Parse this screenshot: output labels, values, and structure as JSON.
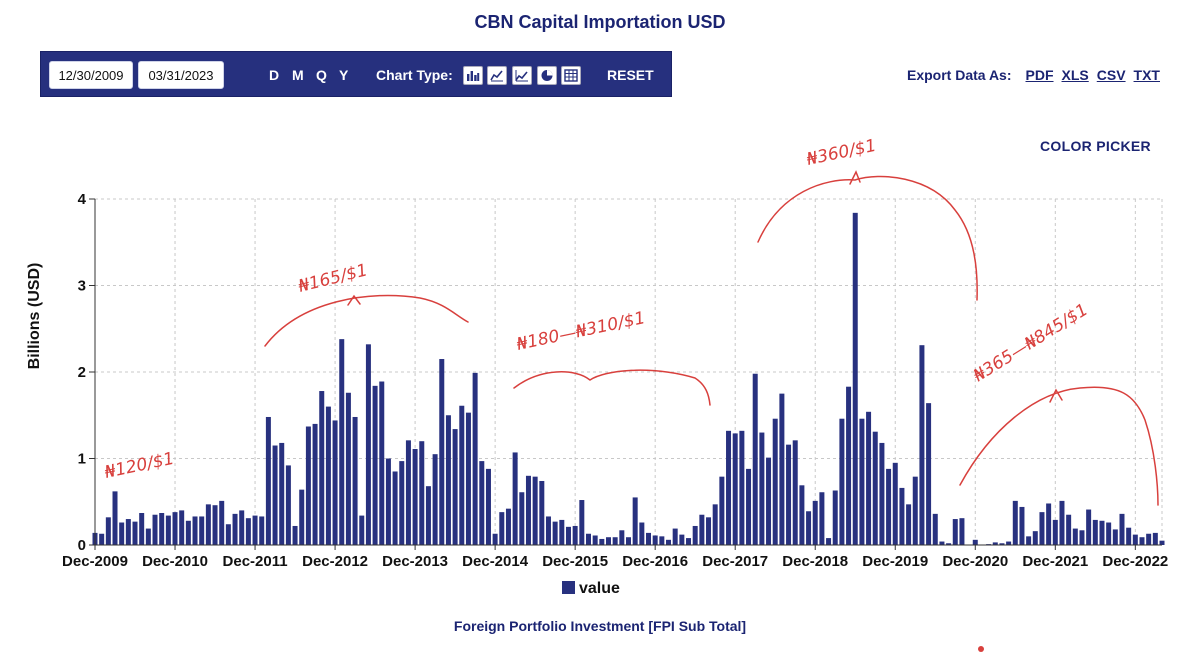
{
  "title": "CBN Capital Importation USD",
  "toolbar": {
    "start_date": "12/30/2009",
    "end_date": "03/31/2023",
    "frequencies": [
      "D",
      "M",
      "Q",
      "Y"
    ],
    "chart_type_label": "Chart Type:",
    "chart_type_icons": [
      "bar-chart-icon",
      "line-chart-icon",
      "area-chart-icon",
      "pie-chart-icon",
      "table-icon"
    ],
    "reset_label": "RESET"
  },
  "export": {
    "label": "Export Data As:",
    "formats": [
      "PDF",
      "XLS",
      "CSV",
      "TXT"
    ]
  },
  "color_picker_label": "COLOR PICKER",
  "annotations": {
    "a1": "₦120/$1",
    "a2": "₦165/$1",
    "a3": "₦180—₦310/$1",
    "a4": "₦360/$1",
    "a5": "₦365—₦845/$1"
  },
  "colors": {
    "bar": "#28317f",
    "accent": "#1b2472",
    "annotation": "#d8403d"
  },
  "chart_data": {
    "type": "bar",
    "title": "CBN Capital Importation USD",
    "subtitle": "Foreign Portfolio Investment [FPI Sub Total]",
    "xlabel": "",
    "ylabel": "Billions (USD)",
    "ylim": [
      0,
      4
    ],
    "yticks": [
      0,
      1,
      2,
      3,
      4
    ],
    "xticks": [
      "Dec-2009",
      "Dec-2010",
      "Dec-2011",
      "Dec-2012",
      "Dec-2013",
      "Dec-2014",
      "Dec-2015",
      "Dec-2016",
      "Dec-2017",
      "Dec-2018",
      "Dec-2019",
      "Dec-2020",
      "Dec-2021",
      "Dec-2022"
    ],
    "grid": true,
    "legend": "bottom-center",
    "series": [
      {
        "name": "value",
        "start": "Dec-2009",
        "frequency": "monthly",
        "values": [
          0.14,
          0.13,
          0.32,
          0.62,
          0.26,
          0.3,
          0.27,
          0.37,
          0.19,
          0.35,
          0.37,
          0.34,
          0.38,
          0.4,
          0.28,
          0.33,
          0.33,
          0.47,
          0.46,
          0.51,
          0.24,
          0.36,
          0.4,
          0.31,
          0.34,
          0.33,
          1.48,
          1.15,
          1.18,
          0.92,
          0.22,
          0.64,
          1.37,
          1.4,
          1.78,
          1.6,
          1.44,
          2.38,
          1.76,
          1.48,
          0.34,
          2.32,
          1.84,
          1.89,
          1.0,
          0.85,
          0.97,
          1.21,
          1.11,
          1.2,
          0.68,
          1.05,
          2.15,
          1.5,
          1.34,
          1.61,
          1.53,
          1.99,
          0.97,
          0.88,
          0.13,
          0.38,
          0.42,
          1.07,
          0.61,
          0.8,
          0.79,
          0.74,
          0.33,
          0.27,
          0.29,
          0.21,
          0.22,
          0.52,
          0.13,
          0.11,
          0.07,
          0.09,
          0.09,
          0.17,
          0.09,
          0.55,
          0.26,
          0.14,
          0.11,
          0.1,
          0.06,
          0.19,
          0.12,
          0.08,
          0.22,
          0.35,
          0.32,
          0.47,
          0.79,
          1.32,
          1.29,
          1.32,
          0.88,
          1.98,
          1.3,
          1.01,
          1.46,
          1.75,
          1.16,
          1.21,
          0.69,
          0.39,
          0.51,
          0.61,
          0.08,
          0.63,
          1.46,
          1.83,
          3.84,
          1.46,
          1.54,
          1.31,
          1.18,
          0.88,
          0.95,
          0.66,
          0.47,
          0.79,
          2.31,
          1.64,
          0.36,
          0.04,
          0.02,
          0.3,
          0.31,
          0.0,
          0.06,
          0.0,
          0.01,
          0.03,
          0.02,
          0.04,
          0.51,
          0.44,
          0.1,
          0.16,
          0.38,
          0.48,
          0.29,
          0.51,
          0.35,
          0.19,
          0.17,
          0.41,
          0.29,
          0.28,
          0.26,
          0.18,
          0.36,
          0.2,
          0.12,
          0.09,
          0.13,
          0.14,
          0.05
        ]
      }
    ]
  }
}
